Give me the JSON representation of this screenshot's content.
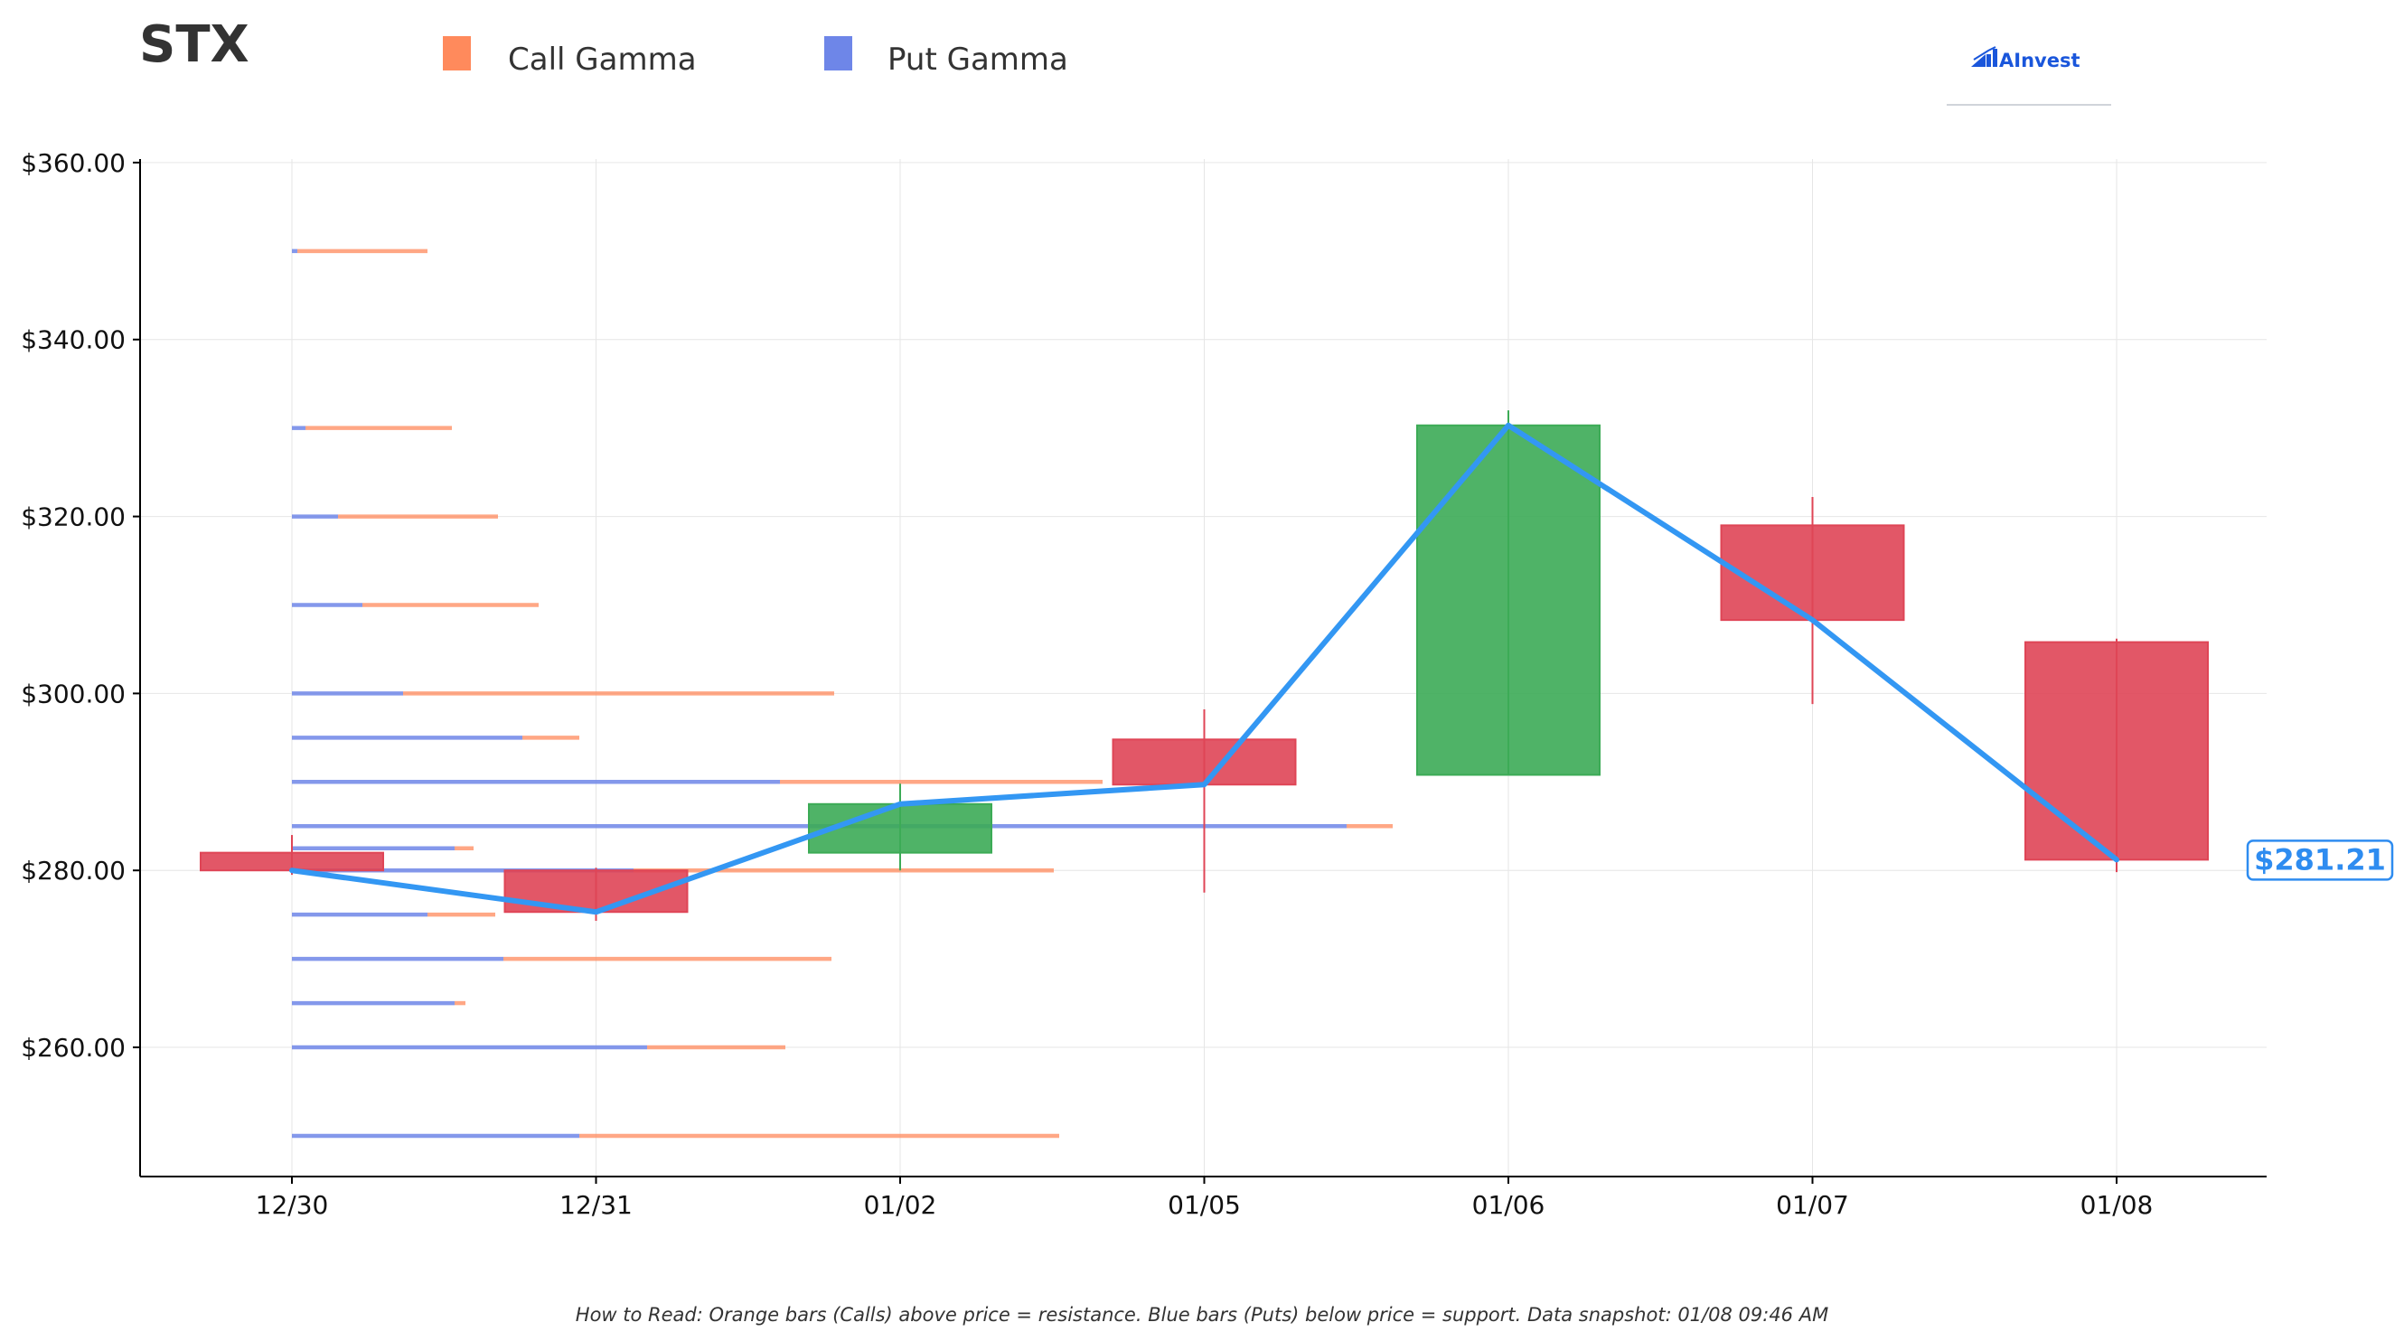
{
  "chart_data": {
    "type": "candlestick",
    "ticker": "STX",
    "legend": [
      {
        "label": "Call Gamma",
        "color": "#ff8a5c"
      },
      {
        "label": "Put Gamma",
        "color": "#6e86e8"
      }
    ],
    "brand": "AInvest",
    "categories": [
      "12/30",
      "12/31",
      "01/02",
      "01/05",
      "01/06",
      "01/07",
      "01/08"
    ],
    "y_ticks": [
      {
        "value": 260,
        "label": "$260.00"
      },
      {
        "value": 280,
        "label": "$280.00"
      },
      {
        "value": 300,
        "label": "$300.00"
      },
      {
        "value": 320,
        "label": "$320.00"
      },
      {
        "value": 340,
        "label": "$340.00"
      },
      {
        "value": 360,
        "label": "$360.00"
      }
    ],
    "ylim": [
      245.4,
      360.4
    ],
    "grid": true,
    "candles": [
      {
        "date": "12/30",
        "open": 282.0,
        "high": 284.0,
        "low": 279.5,
        "close": 280.0
      },
      {
        "date": "12/31",
        "open": 280.0,
        "high": 280.3,
        "low": 274.3,
        "close": 275.3
      },
      {
        "date": "01/02",
        "open": 282.0,
        "high": 289.8,
        "low": 280.0,
        "close": 287.5
      },
      {
        "date": "01/05",
        "open": 294.8,
        "high": 298.2,
        "low": 277.5,
        "close": 289.7
      },
      {
        "date": "01/06",
        "open": 290.8,
        "high": 332.0,
        "low": 290.8,
        "close": 330.3
      },
      {
        "date": "01/07",
        "open": 319.0,
        "high": 322.2,
        "low": 298.8,
        "close": 308.3
      },
      {
        "date": "01/08",
        "open": 305.8,
        "high": 306.2,
        "low": 279.8,
        "close": 281.21
      }
    ],
    "gamma_levels": [
      {
        "strike": 250,
        "put": 106,
        "call": 177
      },
      {
        "strike": 260,
        "put": 131,
        "call": 51
      },
      {
        "strike": 265,
        "put": 60,
        "call": 4
      },
      {
        "strike": 270,
        "put": 78,
        "call": 121
      },
      {
        "strike": 275,
        "put": 50,
        "call": 25
      },
      {
        "strike": 280,
        "put": 126,
        "call": 155
      },
      {
        "strike": 282.5,
        "put": 60,
        "call": 7
      },
      {
        "strike": 285,
        "put": 389,
        "call": 17
      },
      {
        "strike": 290,
        "put": 180,
        "call": 119
      },
      {
        "strike": 295,
        "put": 85,
        "call": 21
      },
      {
        "strike": 300,
        "put": 41,
        "call": 159
      },
      {
        "strike": 310,
        "put": 26,
        "call": 65
      },
      {
        "strike": 320,
        "put": 17,
        "call": 59
      },
      {
        "strike": 330,
        "put": 5,
        "call": 54
      },
      {
        "strike": 350,
        "put": 2,
        "call": 48
      }
    ],
    "last_price": 281.21,
    "last_price_label": "$281.21",
    "colors": {
      "up": "#3cab56",
      "down": "#df4556",
      "price_line": "#3397f3",
      "call": "#ff8a5c",
      "put": "#6e86e8",
      "grid": "#e6e6e6",
      "axis": "#000000"
    },
    "footnote": "How to Read: Orange bars (Calls) above price = resistance. Blue bars (Puts) below price = support. Data snapshot: 01/08 09:46 AM"
  }
}
